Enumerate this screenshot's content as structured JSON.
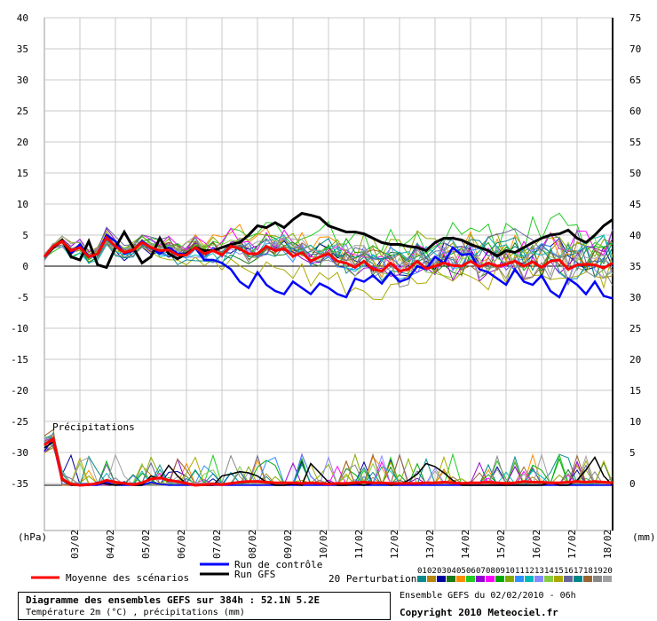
{
  "chart_data": {
    "type": "line",
    "left_axis_unit": "(hPa)",
    "right_axis_unit": "(mm)",
    "left_ticks": [
      "40",
      "35",
      "30",
      "25",
      "20",
      "15",
      "10",
      "5",
      "0",
      "-5",
      "-10",
      "-15",
      "-20",
      "-25",
      "-30",
      "-35"
    ],
    "right_ticks": [
      "75",
      "70",
      "65",
      "60",
      "55",
      "50",
      "45",
      "40",
      "35",
      "30",
      "25",
      "20",
      "15",
      "10",
      "5",
      "0"
    ],
    "ylim_temperature": [
      -35,
      40
    ],
    "xlim_hours": [
      0,
      384
    ],
    "date_labels": [
      "03/02",
      "04/02",
      "05/02",
      "06/02",
      "07/02",
      "08/02",
      "09/02",
      "10/02",
      "11/02",
      "12/02",
      "13/02",
      "14/02",
      "15/02",
      "16/02",
      "17/02",
      "18/02"
    ],
    "grid": true,
    "precip_label": "Précipitations",
    "series": [
      {
        "name": "Moyenne des scénarios",
        "color": "#ff0000",
        "values": [
          1.5,
          3.2,
          4.0,
          2.5,
          3.0,
          1.5,
          2.0,
          4.6,
          3.2,
          2.2,
          2.6,
          3.8,
          3.0,
          2.5,
          2.6,
          1.8,
          1.8,
          3.0,
          2.0,
          2.5,
          1.8,
          3.2,
          2.8,
          2.0,
          2.0,
          3.2,
          2.5,
          2.8,
          1.6,
          2.2,
          0.8,
          1.5,
          2.0,
          0.8,
          0.5,
          -0.2,
          0.8,
          -0.5,
          -0.8,
          0.5,
          -0.8,
          -0.5,
          0.8,
          -0.4,
          0.0,
          0.5,
          0.1,
          0.0,
          0.8,
          -0.1,
          0.5,
          0.0,
          0.3,
          0.8,
          0.0,
          0.7,
          -0.2,
          0.8,
          1.0,
          -0.5,
          0.2,
          0.3,
          0.2,
          -0.3,
          0.5
        ]
      },
      {
        "name": "Run GFS",
        "color": "#000000",
        "values": [
          1.5,
          3.0,
          4.2,
          1.5,
          1.0,
          4.0,
          0.2,
          -0.2,
          3.0,
          5.5,
          3.0,
          0.5,
          1.5,
          4.5,
          2.0,
          1.2,
          2.0,
          3.0,
          2.5,
          2.5,
          3.0,
          3.5,
          3.8,
          5.0,
          6.5,
          6.2,
          7.0,
          6.2,
          7.5,
          8.5,
          8.2,
          7.8,
          6.5,
          6.0,
          5.5,
          5.5,
          5.2,
          4.5,
          3.8,
          3.5,
          3.5,
          3.2,
          3.0,
          2.5,
          3.8,
          4.5,
          4.5,
          4.2,
          3.5,
          3.0,
          2.5,
          1.6,
          2.5,
          2.2,
          3.0,
          3.8,
          4.5,
          5.0,
          5.2,
          5.8,
          4.5,
          3.8,
          5.0,
          6.5,
          7.5
        ]
      },
      {
        "name": "Run de contrôle",
        "color": "#0000ff",
        "values": [
          1.5,
          3.0,
          4.0,
          2.0,
          3.5,
          1.5,
          2.0,
          5.0,
          4.0,
          2.0,
          2.5,
          4.0,
          3.0,
          2.0,
          3.0,
          2.0,
          2.0,
          3.0,
          1.0,
          1.0,
          0.5,
          -0.5,
          -2.5,
          -3.5,
          -1.0,
          -3.0,
          -4.0,
          -4.5,
          -2.5,
          -3.5,
          -4.5,
          -2.8,
          -3.5,
          -4.5,
          -5.0,
          -2.0,
          -2.5,
          -1.5,
          -2.8,
          -1.0,
          -2.5,
          -2.0,
          0.0,
          -0.5,
          1.5,
          0.5,
          3.0,
          1.8,
          2.0,
          -0.5,
          -1.0,
          -2.0,
          -3.0,
          -0.5,
          -2.5,
          -3.0,
          -1.5,
          -4.0,
          -5.0,
          -2.0,
          -3.0,
          -4.5,
          -2.5,
          -4.8,
          -5.2
        ]
      }
    ],
    "precipitation_series": [
      {
        "name": "Moyenne des scénarios",
        "color": "#ff0000",
        "values": [
          6.5,
          7.5,
          1.0,
          0.2,
          0.0,
          0.1,
          0.3,
          0.8,
          0.5,
          0.3,
          0.1,
          0.4,
          1.0,
          1.2,
          0.8,
          0.6,
          0.3,
          0.0,
          0.1,
          0.2,
          0.1,
          0.3,
          0.5,
          0.6,
          0.6,
          0.5,
          0.4,
          0.4,
          0.4,
          0.3,
          0.4,
          0.3,
          0.2,
          0.3,
          0.3,
          0.4,
          0.5,
          0.4,
          0.4,
          0.3,
          0.3,
          0.3,
          0.3,
          0.4,
          0.4,
          0.5,
          0.4,
          0.3,
          0.4,
          0.4,
          0.5,
          0.4,
          0.3,
          0.4,
          0.6,
          0.5,
          0.5,
          0.4,
          0.4,
          0.5,
          0.6,
          0.5,
          0.6,
          0.5,
          0.4
        ]
      },
      {
        "name": "Run GFS",
        "color": "#000000",
        "values": [
          6.0,
          7.0,
          0.8,
          0.0,
          0.0,
          0.0,
          0.5,
          0.2,
          0.0,
          0.2,
          0.0,
          0.0,
          1.5,
          1.0,
          3.2,
          1.5,
          0.2,
          0.0,
          0.0,
          0.0,
          1.5,
          1.8,
          2.2,
          2.0,
          1.5,
          0.5,
          0.0,
          0.0,
          0.2,
          0.0,
          3.5,
          2.0,
          0.5,
          0.0,
          0.0,
          0.2,
          0.0,
          0.3,
          0.5,
          0.0,
          0.2,
          0.8,
          1.8,
          3.5,
          3.0,
          2.0,
          0.8,
          0.0,
          0.0,
          0.0,
          0.0,
          0.0,
          0.0,
          0.0,
          0.0,
          0.0,
          0.0,
          0.5,
          0.0,
          0.0,
          0.8,
          2.5,
          4.5,
          1.5,
          0.0
        ]
      },
      {
        "name": "Run de contrôle",
        "color": "#0000ff",
        "values": [
          5.5,
          7.5,
          1.2,
          0.0,
          0.0,
          0.0,
          0.0,
          0.5,
          0.0,
          0.0,
          0.0,
          0.0,
          0.5,
          0.2,
          0.0,
          0.0,
          0.0,
          0.0,
          0.0,
          0.0,
          0.0,
          0.0,
          0.0,
          0.0,
          0.0,
          0.0,
          0.0,
          0.0,
          0.0,
          0.0,
          0.0,
          0.0,
          0.0,
          0.0,
          0.0,
          0.0,
          0.0,
          0.0,
          0.0,
          0.0,
          0.0,
          0.0,
          0.0,
          0.0,
          0.0,
          0.0,
          0.0,
          0.0,
          0.0,
          0.0,
          0.0,
          0.0,
          0.0,
          0.0,
          0.0,
          0.0,
          0.0,
          0.0,
          0.0,
          0.0,
          0.0,
          0.0,
          0.0,
          0.0,
          0.0
        ]
      }
    ],
    "ensemble": {
      "label": "20 Perturbations",
      "codes": [
        "01",
        "02",
        "03",
        "04",
        "05",
        "06",
        "07",
        "08",
        "09",
        "10",
        "11",
        "12",
        "13",
        "14",
        "15",
        "16",
        "17",
        "18",
        "19",
        "20"
      ],
      "colors": [
        "#0a8a8a",
        "#b8860b",
        "#0000a0",
        "#1a7a1a",
        "#ff8c00",
        "#22cc22",
        "#9400d3",
        "#ff00ff",
        "#00aa00",
        "#88aa00",
        "#3090ff",
        "#00bbbb",
        "#8888ff",
        "#88cc44",
        "#aaaa00",
        "#666699",
        "#008888",
        "#996633",
        "#888888",
        "#a0a0a0"
      ]
    },
    "legend": [
      {
        "label": "Run de contrôle",
        "color": "#0000ff"
      },
      {
        "label": "Run GFS",
        "color": "#000000"
      },
      {
        "label": "Moyenne des scénarios",
        "color": "#ff0000"
      }
    ]
  },
  "info": {
    "title": "Diagramme des ensembles GEFS sur 384h : 52.1N 5.2E",
    "subtitle": "Température 2m (°C) , précipitations (mm)",
    "run_date": "Ensemble GEFS du 02/02/2010 - 06h",
    "copyright": "Copyright 2010 Meteociel.fr"
  }
}
